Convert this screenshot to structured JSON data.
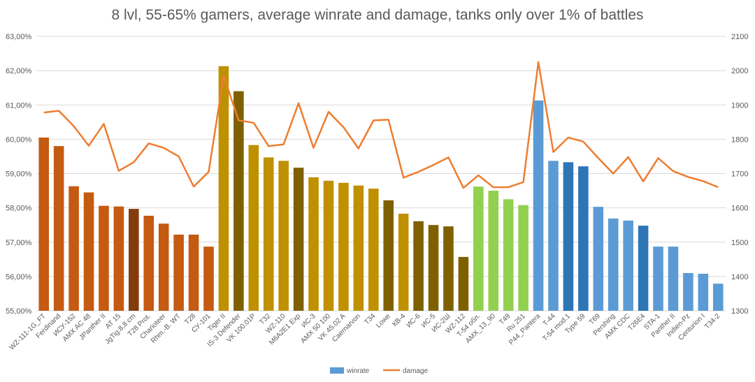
{
  "chart_data": {
    "type": "bar",
    "title": "8 lvl, 55-65% gamers, average winrate and damage, tanks only over 1% of battles",
    "y_left": {
      "min": 55,
      "max": 63,
      "step": 1,
      "tick_labels": [
        "55,00%",
        "56,00%",
        "57,00%",
        "58,00%",
        "59,00%",
        "60,00%",
        "61,00%",
        "62,00%",
        "63,00%"
      ]
    },
    "y_right": {
      "min": 1300,
      "max": 2100,
      "step": 100,
      "tick_labels": [
        "1300",
        "1400",
        "1500",
        "1600",
        "1700",
        "1800",
        "1900",
        "2000",
        "2100"
      ]
    },
    "categories": [
      "WZ-111-1G_FT",
      "Ferdinand",
      "ИСУ-152",
      "AMX AC 48",
      "JPanther II",
      "AT 15",
      "JgTig.8,8 cm",
      "T28 Prot.",
      "Charioteer",
      "Rhm.-B. WT",
      "T28",
      "СУ-101",
      "Tiger II",
      "IS-3 Defender",
      "VK 100.01P",
      "T32",
      "WZ-110",
      "M6A2E1 Exp",
      "ИС-3",
      "AMX 50 100",
      "VK 45.02 A",
      "Caernarvon",
      "T34",
      "Lowe",
      "КВ-4",
      "ИС-6",
      "ИС-5",
      "ИС-2Ш",
      "WZ-112",
      "T-54 обл.",
      "AMX_13_90",
      "T49",
      "Ru 251",
      "P44_Pantera",
      "T-44",
      "T-54 mod.1",
      "Type 59",
      "T69",
      "Pershing",
      "AMX CDC",
      "T26E4",
      "STA-1",
      "Panther II",
      "Indien-Pz",
      "Centurion I",
      "T34-2"
    ],
    "bar_colors": [
      "#c55a11",
      "#c55a11",
      "#c55a11",
      "#c55a11",
      "#c55a11",
      "#c55a11",
      "#843c0c",
      "#c55a11",
      "#c55a11",
      "#c55a11",
      "#c55a11",
      "#c55a11",
      "#bf9000",
      "#7f6000",
      "#bf9000",
      "#bf9000",
      "#bf9000",
      "#7f6000",
      "#bf9000",
      "#bf9000",
      "#bf9000",
      "#bf9000",
      "#bf9000",
      "#7f6000",
      "#bf9000",
      "#7f6000",
      "#7f6000",
      "#7f6000",
      "#7f6000",
      "#92d050",
      "#92d050",
      "#92d050",
      "#92d050",
      "#5b9bd5",
      "#5b9bd5",
      "#2e75b6",
      "#2e75b6",
      "#5b9bd5",
      "#5b9bd5",
      "#5b9bd5",
      "#2e75b6",
      "#5b9bd5",
      "#5b9bd5",
      "#5b9bd5",
      "#5b9bd5",
      "#5b9bd5"
    ],
    "series": [
      {
        "name": "winrate",
        "axis": "left",
        "kind": "bar",
        "values": [
          60.05,
          59.8,
          58.63,
          58.45,
          58.06,
          58.04,
          57.97,
          57.77,
          57.54,
          57.22,
          57.22,
          56.87,
          62.13,
          61.4,
          59.83,
          59.47,
          59.37,
          59.17,
          58.89,
          58.79,
          58.73,
          58.65,
          58.56,
          58.22,
          57.83,
          57.61,
          57.5,
          57.46,
          56.57,
          58.62,
          58.5,
          58.25,
          58.08,
          61.13,
          59.37,
          59.33,
          59.21,
          58.03,
          57.69,
          57.63,
          57.48,
          56.87,
          56.87,
          56.1,
          56.08,
          55.79
        ]
      },
      {
        "name": "damage",
        "axis": "right",
        "kind": "line",
        "color": "#ed7d31",
        "values": [
          1878,
          1883,
          1838,
          1781,
          1845,
          1708,
          1733,
          1788,
          1775,
          1750,
          1662,
          1705,
          1985,
          1855,
          1848,
          1780,
          1785,
          1905,
          1775,
          1880,
          1835,
          1773,
          1855,
          1857,
          1688,
          1705,
          1725,
          1747,
          1658,
          1695,
          1660,
          1660,
          1675,
          2025,
          1763,
          1805,
          1793,
          1745,
          1700,
          1748,
          1677,
          1745,
          1707,
          1690,
          1678,
          1660
        ]
      }
    ],
    "legend": {
      "position": "bottom-center",
      "entries": [
        "winrate",
        "damage"
      ],
      "colors": [
        "#5b9bd5",
        "#ed7d31"
      ]
    },
    "grid": true
  }
}
